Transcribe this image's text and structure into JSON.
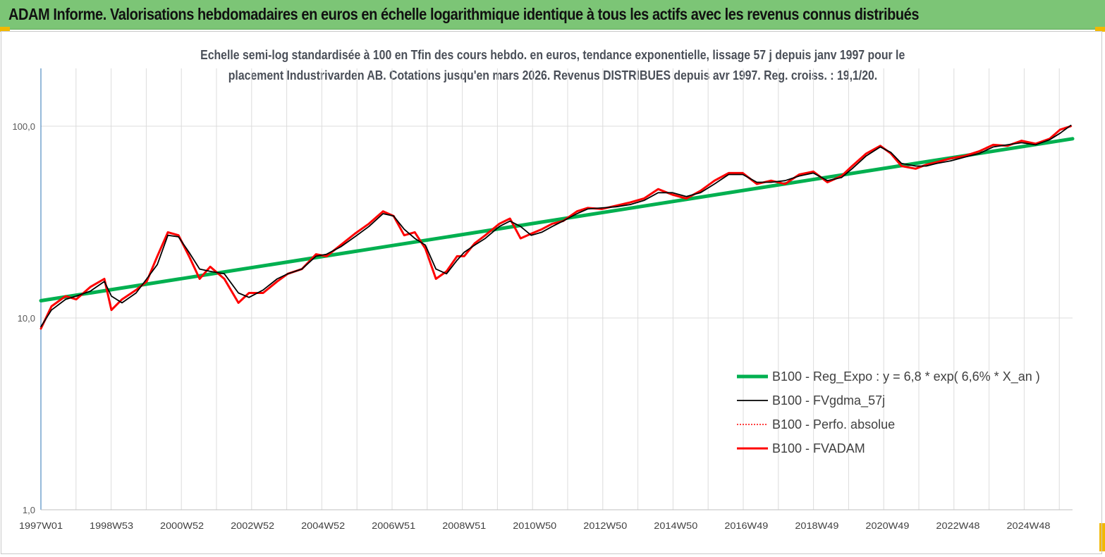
{
  "header": {
    "title": "ADAM Informe. Valorisations hebdomadaires en euros en échelle logarithmique identique à tous les actifs avec les revenus connus distribués"
  },
  "colors": {
    "banner": "#7cc576",
    "regression": "#00b050",
    "fvgdma": "#000000",
    "perfo": "#ff0000",
    "fvadam": "#ff0000",
    "accent_corner": "#f2b800"
  },
  "chart_data": {
    "type": "line",
    "subtitle_line1": "Echelle semi-log standardisée à 100 en Tfin des cours hebdo. en euros, tendance exponentielle, lissage 57 j depuis janv 1997 pour le",
    "subtitle_line2": "placement Industrivarden AB. Cotations jusqu'en mars 2026. Revenus DISTRIBUES depuis avr 1997. Reg. croiss. : 19,1/20.",
    "y_scale": "log",
    "ylim": [
      1,
      200
    ],
    "xlim": [
      1997.0,
      2026.25
    ],
    "y_ticks": [
      {
        "value": 1,
        "label": "1,0"
      },
      {
        "value": 10,
        "label": "10,0"
      },
      {
        "value": 100,
        "label": "100,0"
      }
    ],
    "x_ticks": [
      {
        "value": 1997.0,
        "label": "1997W01"
      },
      {
        "value": 1999.0,
        "label": "1998W53"
      },
      {
        "value": 2001.0,
        "label": "2000W52"
      },
      {
        "value": 2003.0,
        "label": "2002W52"
      },
      {
        "value": 2005.0,
        "label": "2004W52"
      },
      {
        "value": 2007.0,
        "label": "2006W51"
      },
      {
        "value": 2009.0,
        "label": "2008W51"
      },
      {
        "value": 2011.0,
        "label": "2010W50"
      },
      {
        "value": 2013.0,
        "label": "2012W50"
      },
      {
        "value": 2015.0,
        "label": "2014W50"
      },
      {
        "value": 2017.0,
        "label": "2016W49"
      },
      {
        "value": 2019.0,
        "label": "2018W49"
      },
      {
        "value": 2021.0,
        "label": "2020W49"
      },
      {
        "value": 2023.0,
        "label": "2022W48"
      },
      {
        "value": 2025.0,
        "label": "2024W48"
      }
    ],
    "grid": "vertical-and-horizontal",
    "legend_position": "bottom-right",
    "series": [
      {
        "name": "B100 - Reg_Expo : y = 6,8 *  exp( 6,6% *  X_an )",
        "style": "thick-green",
        "x": [
          1997.0,
          2026.25
        ],
        "values": [
          12.3,
          86.0
        ]
      },
      {
        "name": "B100 - FVgdma_57j",
        "style": "thin-black",
        "x": [
          1997.0,
          1997.3,
          1997.7,
          1998.0,
          1998.4,
          1998.8,
          1999.0,
          1999.3,
          1999.7,
          2000.0,
          2000.3,
          2000.6,
          2000.9,
          2001.2,
          2001.5,
          2001.8,
          2002.2,
          2002.6,
          2002.9,
          2003.3,
          2003.7,
          2004.0,
          2004.4,
          2004.8,
          2005.1,
          2005.5,
          2005.9,
          2006.3,
          2006.7,
          2007.0,
          2007.3,
          2007.6,
          2007.9,
          2008.2,
          2008.5,
          2008.8,
          2009.0,
          2009.3,
          2009.6,
          2010.0,
          2010.3,
          2010.6,
          2010.9,
          2011.2,
          2011.5,
          2011.8,
          2012.2,
          2012.5,
          2012.9,
          2013.3,
          2013.7,
          2014.1,
          2014.5,
          2014.9,
          2015.3,
          2015.7,
          2016.1,
          2016.5,
          2016.9,
          2017.3,
          2017.7,
          2018.1,
          2018.5,
          2018.9,
          2019.3,
          2019.7,
          2020.0,
          2020.4,
          2020.8,
          2021.1,
          2021.4,
          2021.8,
          2022.1,
          2022.4,
          2022.8,
          2023.2,
          2023.6,
          2024.0,
          2024.4,
          2024.8,
          2025.2,
          2025.6,
          2025.9,
          2026.2
        ],
        "values": [
          9.0,
          11.0,
          12.5,
          13.0,
          13.8,
          15.5,
          13.0,
          12.0,
          13.5,
          16.0,
          19.0,
          27.0,
          26.5,
          22.0,
          18.0,
          17.5,
          17.0,
          13.5,
          12.8,
          14.0,
          16.0,
          17.0,
          18.0,
          21.0,
          21.5,
          23.5,
          26.5,
          30.0,
          35.0,
          34.0,
          29.0,
          26.0,
          24.0,
          18.0,
          17.0,
          20.0,
          22.0,
          24.0,
          26.0,
          30.0,
          32.0,
          30.0,
          27.0,
          28.0,
          30.0,
          32.0,
          35.0,
          37.0,
          37.5,
          38.0,
          39.0,
          41.0,
          45.0,
          45.0,
          43.0,
          45.0,
          50.0,
          56.0,
          56.0,
          51.0,
          51.0,
          52.0,
          55.0,
          57.0,
          52.0,
          54.0,
          60.0,
          70.0,
          78.0,
          73.0,
          64.0,
          62.0,
          62.0,
          64.0,
          66.0,
          69.0,
          72.0,
          78.0,
          80.0,
          82.0,
          80.0,
          85.0,
          92.0,
          101.0
        ]
      },
      {
        "name": "B100 - Perfo. absolue",
        "style": "dotted-red",
        "x": [
          1997.0,
          1997.3,
          1997.7,
          1998.0,
          1998.4,
          1998.8,
          1999.0,
          1999.3,
          1999.7,
          2000.0,
          2000.3,
          2000.6,
          2000.9,
          2001.2,
          2001.5,
          2001.8,
          2002.2,
          2002.6,
          2002.9,
          2003.3,
          2003.7,
          2004.0,
          2004.4,
          2004.8,
          2005.1,
          2005.5,
          2005.9,
          2006.3,
          2006.7,
          2007.0,
          2007.3,
          2007.6,
          2007.9,
          2008.2,
          2008.5,
          2008.8,
          2009.0,
          2009.3,
          2009.6,
          2010.0,
          2010.3,
          2010.6,
          2010.9,
          2011.2,
          2011.5,
          2011.8,
          2012.2,
          2012.5,
          2012.9,
          2013.3,
          2013.7,
          2014.1,
          2014.5,
          2014.9,
          2015.3,
          2015.7,
          2016.1,
          2016.5,
          2016.9,
          2017.3,
          2017.7,
          2018.1,
          2018.5,
          2018.9,
          2019.3,
          2019.7,
          2020.0,
          2020.4,
          2020.8,
          2021.1,
          2021.4,
          2021.8,
          2022.1,
          2022.4,
          2022.8,
          2023.2,
          2023.6,
          2024.0,
          2024.4,
          2024.8,
          2025.2,
          2025.6,
          2025.9,
          2026.2
        ],
        "values": [
          8.8,
          11.5,
          13.0,
          12.5,
          14.5,
          16.0,
          11.0,
          12.5,
          14.0,
          15.5,
          21.0,
          28.0,
          27.0,
          21.0,
          16.0,
          18.5,
          16.0,
          12.0,
          13.5,
          13.5,
          15.5,
          17.0,
          18.0,
          21.5,
          21.0,
          24.0,
          27.5,
          31.0,
          36.0,
          34.0,
          27.0,
          28.0,
          23.0,
          16.0,
          17.5,
          21.0,
          21.0,
          24.5,
          27.0,
          31.0,
          33.0,
          26.0,
          27.5,
          29.0,
          31.0,
          32.0,
          36.0,
          37.5,
          37.0,
          38.5,
          40.0,
          42.0,
          47.0,
          44.0,
          42.0,
          46.0,
          52.0,
          57.0,
          57.0,
          50.0,
          52.0,
          50.0,
          56.0,
          58.0,
          51.0,
          55.0,
          62.0,
          72.0,
          79.0,
          72.0,
          62.0,
          60.0,
          63.0,
          65.0,
          68.0,
          70.0,
          74.0,
          80.0,
          79.0,
          84.0,
          81.0,
          86.0,
          96.0,
          100.0
        ]
      },
      {
        "name": "B100 - FVADAM",
        "style": "thick-red",
        "x": [
          1997.0,
          1997.3,
          1997.7,
          1998.0,
          1998.4,
          1998.8,
          1999.0,
          1999.3,
          1999.7,
          2000.0,
          2000.3,
          2000.6,
          2000.9,
          2001.2,
          2001.5,
          2001.8,
          2002.2,
          2002.6,
          2002.9,
          2003.3,
          2003.7,
          2004.0,
          2004.4,
          2004.8,
          2005.1,
          2005.5,
          2005.9,
          2006.3,
          2006.7,
          2007.0,
          2007.3,
          2007.6,
          2007.9,
          2008.2,
          2008.5,
          2008.8,
          2009.0,
          2009.3,
          2009.6,
          2010.0,
          2010.3,
          2010.6,
          2010.9,
          2011.2,
          2011.5,
          2011.8,
          2012.2,
          2012.5,
          2012.9,
          2013.3,
          2013.7,
          2014.1,
          2014.5,
          2014.9,
          2015.3,
          2015.7,
          2016.1,
          2016.5,
          2016.9,
          2017.3,
          2017.7,
          2018.1,
          2018.5,
          2018.9,
          2019.3,
          2019.7,
          2020.0,
          2020.4,
          2020.8,
          2021.1,
          2021.4,
          2021.8,
          2022.1,
          2022.4,
          2022.8,
          2023.2,
          2023.6,
          2024.0,
          2024.4,
          2024.8,
          2025.2,
          2025.6,
          2025.9,
          2026.2
        ],
        "values": [
          8.8,
          11.5,
          13.0,
          12.5,
          14.5,
          16.0,
          11.0,
          12.5,
          14.0,
          15.5,
          21.0,
          28.0,
          27.0,
          21.0,
          16.0,
          18.5,
          16.0,
          12.0,
          13.5,
          13.5,
          15.5,
          17.0,
          18.0,
          21.5,
          21.0,
          24.0,
          27.5,
          31.0,
          36.0,
          34.0,
          27.0,
          28.0,
          23.0,
          16.0,
          17.5,
          21.0,
          21.0,
          24.5,
          27.0,
          31.0,
          33.0,
          26.0,
          27.5,
          29.0,
          31.0,
          32.0,
          36.0,
          37.5,
          37.0,
          38.5,
          40.0,
          42.0,
          47.0,
          44.0,
          42.0,
          46.0,
          52.0,
          57.0,
          57.0,
          50.0,
          52.0,
          50.0,
          56.0,
          58.0,
          51.0,
          55.0,
          62.0,
          72.0,
          79.0,
          72.0,
          62.0,
          60.0,
          63.0,
          65.0,
          68.0,
          70.0,
          74.0,
          80.0,
          79.0,
          84.0,
          81.0,
          86.0,
          96.0,
          100.0
        ]
      }
    ]
  }
}
